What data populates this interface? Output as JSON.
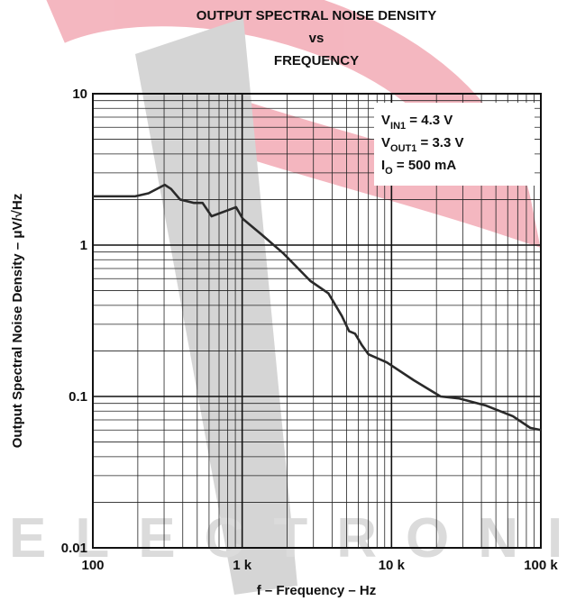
{
  "chart_data": {
    "type": "line",
    "title": [
      "OUTPUT SPECTRAL NOISE DENSITY",
      "vs",
      "FREQUENCY"
    ],
    "x_label": "f – Frequency – Hz",
    "y_label": "Output Spectral Noise Density –  μV/√Hz",
    "annotations": [
      {
        "main": "V",
        "sub": "IN1",
        "rest": " = 4.3 V"
      },
      {
        "main": "V",
        "sub": "OUT1",
        "rest": " = 3.3 V"
      },
      {
        "main": "I",
        "sub": "O",
        "rest": " = 500 mA"
      }
    ],
    "x_log": true,
    "y_log": true,
    "grid": true,
    "xlim": [
      100,
      100000
    ],
    "ylim": [
      0.01,
      10
    ],
    "xticks": [
      {
        "value": 100,
        "label": "100"
      },
      {
        "value": 1000,
        "label": "1 k"
      },
      {
        "value": 10000,
        "label": "10 k"
      },
      {
        "value": 100000,
        "label": "100 k"
      }
    ],
    "yticks": [
      0.01,
      0.1,
      1,
      10
    ],
    "x": [
      100,
      192,
      236,
      303,
      334,
      384,
      473,
      543,
      624,
      910,
      1010,
      1340,
      1890,
      2860,
      3780,
      4650,
      5200,
      5700,
      6300,
      7000,
      9300,
      14100,
      21300,
      28400,
      43000,
      65000,
      85000,
      100000
    ],
    "series": [
      {
        "color": "#2a2a2a",
        "values": [
          2.1,
          2.1,
          2.2,
          2.5,
          2.35,
          2.0,
          1.9,
          1.9,
          1.55,
          1.78,
          1.49,
          1.18,
          0.88,
          0.58,
          0.48,
          0.34,
          0.27,
          0.26,
          0.22,
          0.19,
          0.168,
          0.128,
          0.1,
          0.097,
          0.087,
          0.074,
          0.062,
          0.06
        ]
      }
    ]
  }
}
